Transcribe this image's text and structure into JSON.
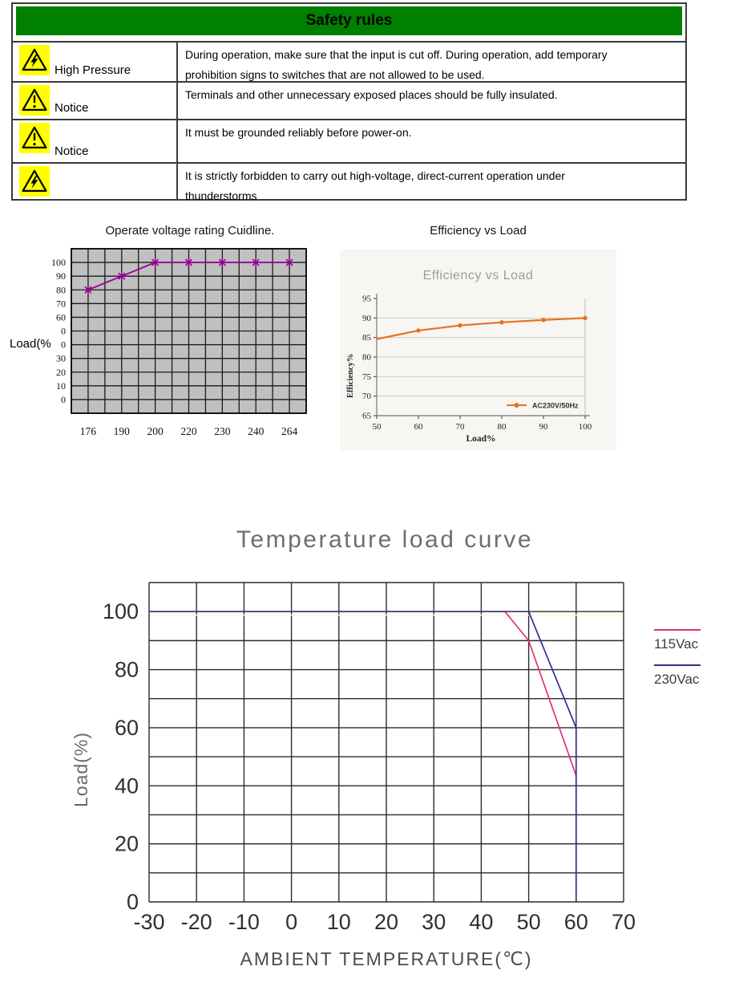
{
  "safety_table": {
    "title": "Safety rules",
    "title_bg": "#008000",
    "icon_bg": "#ffff00",
    "rows": [
      {
        "icon": "high-voltage-triangle-icon",
        "label": "High Pressure",
        "lines": [
          "During operation, make sure that the input is cut off. During operation, add temporary",
          "prohibition signs to switches that are not allowed to be used."
        ]
      },
      {
        "icon": "exclamation-triangle-icon",
        "label": "Notice",
        "lines": [
          "Terminals and other unnecessary exposed places should be fully insulated."
        ]
      },
      {
        "icon": "exclamation-triangle-icon",
        "label": "Notice",
        "lines": [
          "It must be grounded reliably before power-on."
        ]
      },
      {
        "icon": "high-voltage-triangle-icon",
        "label": "",
        "lines": [
          "It is strictly forbidden to carry out high-voltage, direct-current operation under",
          "thunderstorms"
        ]
      }
    ]
  },
  "chart_data": [
    {
      "id": "operate-voltage-guideline",
      "type": "line",
      "title": "Operate voltage rating Cuidline.",
      "ylabel": "Load(%",
      "x_ticks": [
        "176",
        "190",
        "200",
        "220",
        "230",
        "240",
        "264"
      ],
      "y_tick_labels": [
        "100",
        "90",
        "80",
        "70",
        "60",
        "0",
        "0",
        "30",
        "20",
        "10",
        "0"
      ],
      "grid": {
        "cols": 14,
        "rows": 12,
        "bg": "#c0c0c0",
        "line": "#1a1a1a",
        "on": true
      },
      "marker": "asterisk",
      "series": [
        {
          "name": "load",
          "color": "#990099",
          "x": [
            176,
            190,
            200,
            220,
            230,
            240,
            264
          ],
          "values": [
            80,
            90,
            100,
            100,
            100,
            100,
            100
          ]
        }
      ]
    },
    {
      "id": "efficiency-vs-load",
      "type": "line",
      "outer_title": "Efficiency vs Load",
      "title": "Efficiency vs Load",
      "xlabel": "Load%",
      "ylabel": "Efficiency%",
      "xlim": [
        50,
        100
      ],
      "ylim": [
        65,
        95
      ],
      "x_ticks": [
        50,
        60,
        70,
        80,
        90,
        100
      ],
      "y_ticks": [
        95,
        90,
        85,
        80,
        75,
        70,
        65
      ],
      "grid": {
        "on": true,
        "line": "#cfccc6"
      },
      "panel_bg": "#f7f6f2",
      "legend": {
        "label": "AC230V/50Hz",
        "position": "inside-bottom-right"
      },
      "series": [
        {
          "name": "AC230V/50Hz",
          "color": "#e87024",
          "x": [
            50,
            60,
            70,
            80,
            90,
            100
          ],
          "values": [
            84.6,
            86.8,
            88.1,
            88.9,
            89.5,
            90
          ]
        }
      ]
    },
    {
      "id": "temperature-load-curve",
      "type": "line",
      "title": "Temperature load curve",
      "xlabel": "AMBIENT TEMPERATURE(℃)",
      "ylabel": "Load(%)",
      "xlim": [
        -30,
        70
      ],
      "ylim": [
        0,
        110
      ],
      "x_ticks": [
        -30,
        -20,
        -10,
        0,
        10,
        20,
        30,
        40,
        50,
        60,
        70
      ],
      "y_ticks": [
        100,
        80,
        60,
        40,
        20,
        0
      ],
      "grid": {
        "on": true,
        "line": "#2b2b2b",
        "step_x": 10,
        "step_y": 10
      },
      "faint_line": {
        "y": 98.8,
        "color": "#fdfdc8"
      },
      "legend": [
        {
          "label": "115Vac",
          "color": "#e42d7c"
        },
        {
          "label": "230Vac",
          "color": "#2f3090"
        }
      ],
      "series": [
        {
          "name": "115Vac",
          "color": "#e42d7c",
          "points": [
            [
              -30,
              100
            ],
            [
              45,
              100
            ],
            [
              50,
              90
            ],
            [
              60,
              43.5
            ]
          ]
        },
        {
          "name": "230Vac",
          "color": "#2f3090",
          "points": [
            [
              -30,
              100
            ],
            [
              50,
              100
            ],
            [
              60,
              60
            ],
            [
              60,
              0
            ]
          ]
        }
      ]
    }
  ]
}
